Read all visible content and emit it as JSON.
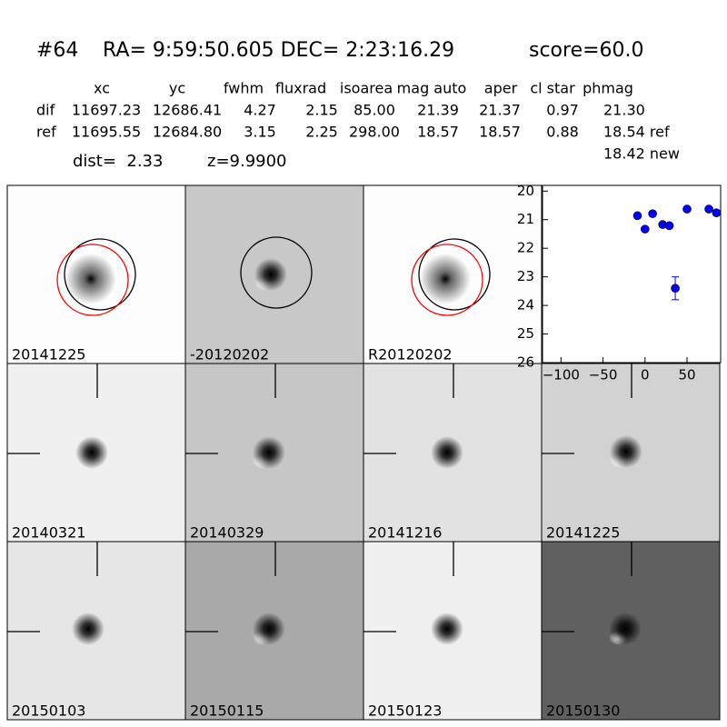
{
  "header": {
    "id": "#64",
    "coords": "RA= 9:59:50.605 DEC= 2:23:16.29",
    "score": "score=60.0"
  },
  "table": {
    "header": [
      "xc",
      "yc",
      "fwhm",
      "fluxrad",
      "isoarea",
      "mag auto",
      "aper",
      "cl star",
      "phmag"
    ],
    "rows": [
      [
        "dif",
        "11697.23",
        "12686.41",
        "4.27",
        "2.15",
        "85.00",
        "21.39",
        "21.37",
        "0.97",
        "21.30"
      ],
      [
        "ref",
        "11695.55",
        "12684.80",
        "3.15",
        "2.25",
        "298.00",
        "18.57",
        "18.57",
        "0.88",
        "18.54 ref"
      ]
    ],
    "extra": "18.42 new"
  },
  "dist": "dist=  2.33",
  "z": "z=9.9900",
  "panels": [
    {
      "label": "20141225",
      "background": "#fdfdfd",
      "label_color": "#000000"
    },
    {
      "label": "-20120202",
      "background": "#c8c8c8",
      "label_color": "#000000"
    },
    {
      "label": "R20120202",
      "background": "#fdfdfd",
      "label_color": "#000000"
    },
    {
      "label": "20140321",
      "background": "#f0f0f0",
      "label_color": "#000000"
    },
    {
      "label": "20140329",
      "background": "#c6c6c6",
      "label_color": "#000000"
    },
    {
      "label": "20141216",
      "background": "#e2e2e2",
      "label_color": "#000000"
    },
    {
      "label": "20141225",
      "background": "#d2d2d2",
      "label_color": "#ff0000"
    },
    {
      "label": "20150103",
      "background": "#e6e6e6",
      "label_color": "#000000"
    },
    {
      "label": "20150115",
      "background": "#a9a9a9",
      "label_color": "#000000"
    },
    {
      "label": "20150123",
      "background": "#f0f0f0",
      "label_color": "#000000"
    },
    {
      "label": "20150130",
      "background": "#606060",
      "label_color": "#000000"
    }
  ],
  "chart_data": {
    "type": "scatter",
    "color": "#0000ff",
    "x": [
      -9,
      0,
      9,
      21,
      29,
      36,
      50,
      76,
      85
    ],
    "values": [
      20.86,
      21.33,
      20.79,
      21.17,
      21.21,
      23.4,
      20.63,
      20.63,
      20.76
    ],
    "errors": [
      0.03,
      0.03,
      0.03,
      0.03,
      0.03,
      0.4,
      0.03,
      0.03,
      0.03
    ],
    "xlim": [
      -122,
      90
    ],
    "ylim": [
      19.8,
      26
    ],
    "y_inverted": true,
    "xticks": [
      {
        "value": -100,
        "label": "−100"
      },
      {
        "value": -50,
        "label": "−50"
      },
      0,
      50
    ],
    "yticks": [
      20,
      21,
      22,
      23,
      24,
      25,
      26
    ]
  }
}
